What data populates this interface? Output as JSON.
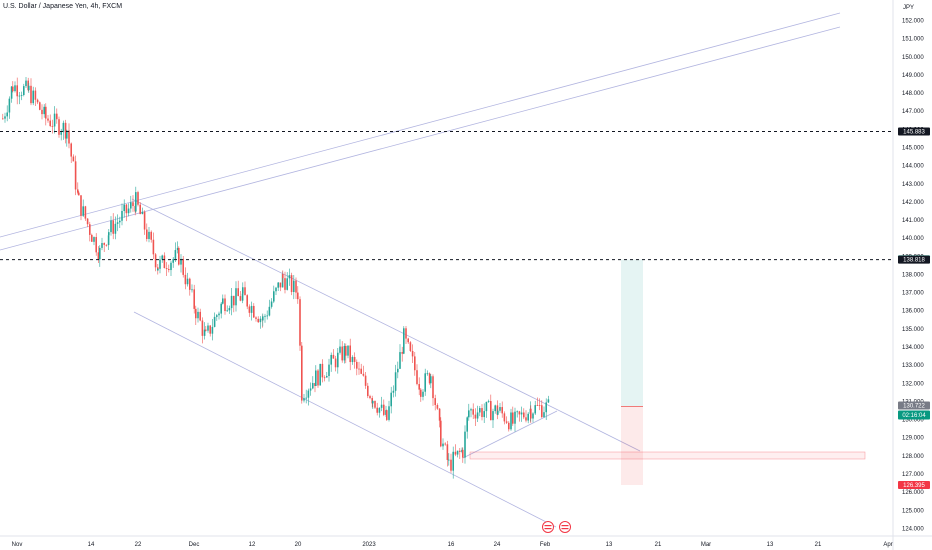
{
  "header": {
    "title": "U.S. Dollar / Japanese Yen, 4h, FXCM",
    "currency": "JPY"
  },
  "price_axis": {
    "ticks": [
      "152.000",
      "151.000",
      "150.000",
      "149.000",
      "148.000",
      "147.000",
      "146.000",
      "145.000",
      "144.000",
      "143.000",
      "142.000",
      "141.000",
      "140.000",
      "139.000",
      "138.000",
      "137.000",
      "136.000",
      "135.000",
      "134.000",
      "133.000",
      "132.000",
      "131.000",
      "130.000",
      "129.000",
      "128.000",
      "127.000",
      "126.000",
      "125.000",
      "124.000"
    ]
  },
  "time_axis": {
    "labels": [
      "Nov",
      "14",
      "22",
      "Dec",
      "12",
      "20",
      "2023",
      "16",
      "24",
      "Feb",
      "13",
      "21",
      "Mar",
      "13",
      "21",
      "Apr"
    ]
  },
  "price_tags": {
    "upper_level": "145.883",
    "current_green": "138.832",
    "lower_level": "138.818",
    "entry_price": "130.722",
    "countdown": "02:16:04",
    "stop_price": "126.395"
  },
  "colors": {
    "up": "#26a69a",
    "down": "#ef5350",
    "trendline": "#b2b5e0",
    "tag_dark": "#131722",
    "tag_green": "#089981",
    "tag_red": "#f23645"
  },
  "chart_data": {
    "type": "candlestick",
    "symbol": "USDJPY",
    "timeframe": "4h",
    "ylim": [
      123.5,
      153.0
    ],
    "approx_close_path": [
      {
        "x": "Oct 27",
        "y": 146.6
      },
      {
        "x": "Oct 31",
        "y": 148.4
      },
      {
        "x": "Nov 3",
        "y": 148.1
      },
      {
        "x": "Nov 7",
        "y": 146.6
      },
      {
        "x": "Nov 10",
        "y": 146.0
      },
      {
        "x": "Nov 11",
        "y": 142.0
      },
      {
        "x": "Nov 14",
        "y": 140.2
      },
      {
        "x": "Nov 16",
        "y": 139.2
      },
      {
        "x": "Nov 18",
        "y": 140.4
      },
      {
        "x": "Nov 21",
        "y": 142.0
      },
      {
        "x": "Nov 24",
        "y": 138.5
      },
      {
        "x": "Nov 28",
        "y": 139.0
      },
      {
        "x": "Dec 1",
        "y": 136.0
      },
      {
        "x": "Dec 2",
        "y": 134.5
      },
      {
        "x": "Dec 5",
        "y": 136.5
      },
      {
        "x": "Dec 8",
        "y": 136.8
      },
      {
        "x": "Dec 12",
        "y": 135.5
      },
      {
        "x": "Dec 15",
        "y": 137.8
      },
      {
        "x": "Dec 19",
        "y": 137.0
      },
      {
        "x": "Dec 20",
        "y": 131.5
      },
      {
        "x": "Dec 22",
        "y": 132.3
      },
      {
        "x": "Dec 27",
        "y": 133.8
      },
      {
        "x": "Dec 30",
        "y": 131.2
      },
      {
        "x": "Jan 3",
        "y": 130.0
      },
      {
        "x": "Jan 6",
        "y": 134.5
      },
      {
        "x": "Jan 9",
        "y": 131.8
      },
      {
        "x": "Jan 11",
        "y": 132.5
      },
      {
        "x": "Jan 13",
        "y": 129.0
      },
      {
        "x": "Jan 16",
        "y": 127.5
      },
      {
        "x": "Jan 18",
        "y": 128.3
      },
      {
        "x": "Jan 19",
        "y": 130.5
      },
      {
        "x": "Jan 23",
        "y": 130.5
      },
      {
        "x": "Jan 26",
        "y": 129.8
      },
      {
        "x": "Jan 27",
        "y": 130.6
      },
      {
        "x": "Jan 31",
        "y": 130.7
      }
    ],
    "horizontal_levels": [
      145.883,
      138.818
    ],
    "position": {
      "entry": 130.722,
      "target": 138.818,
      "stop": 126.395
    }
  }
}
